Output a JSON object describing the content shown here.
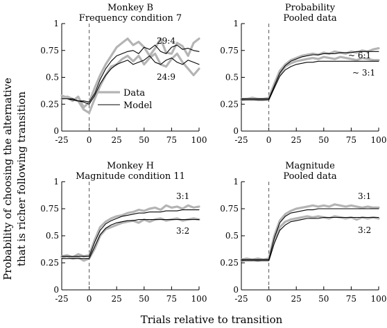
{
  "figure": {
    "ylabel_line1": "Probability of choosing the alternative",
    "ylabel_line2": "that is richer following transition",
    "xlabel": "Trials relative to transition"
  },
  "legend": {
    "data_label": "Data",
    "model_label": "Model"
  },
  "colors": {
    "data": "#b4b4b4",
    "model": "#000000",
    "dashed": "#555555"
  },
  "chart_data": [
    {
      "type": "line",
      "title": "Monkey B",
      "subtitle": "Frequency condition 7",
      "xlim": [
        -25,
        100
      ],
      "ylim": [
        0,
        1
      ],
      "xticks": [
        "-25",
        "0",
        "25",
        "50",
        "75",
        "100"
      ],
      "yticks": [
        "0",
        "0.25",
        "0.5",
        "0.75",
        "1"
      ],
      "annotations": [
        "29:4",
        "24:9"
      ],
      "legend": true,
      "x": [
        -25,
        -20,
        -15,
        -10,
        -5,
        0,
        5,
        10,
        15,
        20,
        25,
        30,
        35,
        40,
        45,
        50,
        55,
        60,
        65,
        70,
        75,
        80,
        85,
        90,
        95,
        100
      ],
      "series": [
        {
          "name": "Data",
          "kind": "data",
          "ratio": "29:4",
          "values": [
            0.33,
            0.31,
            0.28,
            0.32,
            0.22,
            0.27,
            0.4,
            0.52,
            0.62,
            0.7,
            0.78,
            0.82,
            0.86,
            0.8,
            0.83,
            0.78,
            0.7,
            0.77,
            0.86,
            0.73,
            0.72,
            0.82,
            0.79,
            0.7,
            0.82,
            0.86
          ]
        },
        {
          "name": "Model",
          "kind": "model",
          "ratio": "29:4",
          "values": [
            0.3,
            0.3,
            0.29,
            0.28,
            0.28,
            0.27,
            0.35,
            0.48,
            0.58,
            0.65,
            0.7,
            0.72,
            0.74,
            0.75,
            0.72,
            0.78,
            0.76,
            0.8,
            0.74,
            0.72,
            0.78,
            0.8,
            0.76,
            0.77,
            0.75,
            0.74
          ]
        },
        {
          "name": "Data",
          "kind": "data",
          "ratio": "24:9",
          "values": [
            0.3,
            0.32,
            0.3,
            0.28,
            0.2,
            0.17,
            0.3,
            0.42,
            0.52,
            0.6,
            0.62,
            0.67,
            0.7,
            0.65,
            0.7,
            0.62,
            0.68,
            0.72,
            0.62,
            0.6,
            0.67,
            0.72,
            0.64,
            0.58,
            0.52,
            0.58
          ]
        },
        {
          "name": "Model",
          "kind": "model",
          "ratio": "24:9",
          "values": [
            0.3,
            0.3,
            0.3,
            0.28,
            0.27,
            0.25,
            0.33,
            0.44,
            0.52,
            0.58,
            0.62,
            0.64,
            0.66,
            0.62,
            0.64,
            0.66,
            0.7,
            0.64,
            0.62,
            0.66,
            0.68,
            0.64,
            0.62,
            0.66,
            0.64,
            0.62
          ]
        }
      ]
    },
    {
      "type": "line",
      "title": "Probability",
      "subtitle": "Pooled data",
      "xlim": [
        -25,
        100
      ],
      "ylim": [
        0,
        1
      ],
      "xticks": [
        "-25",
        "0",
        "25",
        "50",
        "75",
        "100"
      ],
      "yticks": [
        "0",
        "0.25",
        "0.5",
        "0.75",
        "1"
      ],
      "annotations": [
        "~ 6:1",
        "~ 3:1"
      ],
      "legend": false,
      "x": [
        -25,
        -20,
        -15,
        -10,
        -5,
        0,
        5,
        10,
        15,
        20,
        25,
        30,
        35,
        40,
        45,
        50,
        55,
        60,
        65,
        70,
        75,
        80,
        85,
        90,
        95,
        100
      ],
      "series": [
        {
          "name": "Data",
          "kind": "data",
          "ratio": "~ 6:1",
          "values": [
            0.3,
            0.3,
            0.31,
            0.3,
            0.3,
            0.31,
            0.44,
            0.56,
            0.62,
            0.66,
            0.68,
            0.7,
            0.71,
            0.72,
            0.71,
            0.73,
            0.72,
            0.74,
            0.73,
            0.72,
            0.74,
            0.73,
            0.75,
            0.74,
            0.76,
            0.77
          ]
        },
        {
          "name": "Model",
          "kind": "model",
          "ratio": "~ 6:1",
          "values": [
            0.3,
            0.3,
            0.3,
            0.3,
            0.3,
            0.3,
            0.42,
            0.54,
            0.61,
            0.65,
            0.67,
            0.69,
            0.7,
            0.71,
            0.71,
            0.72,
            0.72,
            0.72,
            0.73,
            0.73,
            0.73,
            0.74,
            0.74,
            0.74,
            0.74,
            0.74
          ]
        },
        {
          "name": "Data",
          "kind": "data",
          "ratio": "~ 3:1",
          "values": [
            0.29,
            0.3,
            0.3,
            0.29,
            0.29,
            0.3,
            0.42,
            0.53,
            0.6,
            0.63,
            0.65,
            0.66,
            0.67,
            0.68,
            0.67,
            0.69,
            0.68,
            0.67,
            0.69,
            0.68,
            0.67,
            0.66,
            0.68,
            0.67,
            0.66,
            0.66
          ]
        },
        {
          "name": "Model",
          "kind": "model",
          "ratio": "~ 3:1",
          "values": [
            0.29,
            0.29,
            0.29,
            0.29,
            0.29,
            0.29,
            0.4,
            0.51,
            0.57,
            0.6,
            0.62,
            0.63,
            0.64,
            0.64,
            0.65,
            0.65,
            0.65,
            0.65,
            0.65,
            0.65,
            0.65,
            0.65,
            0.65,
            0.65,
            0.65,
            0.65
          ]
        }
      ]
    },
    {
      "type": "line",
      "title": "Monkey H",
      "subtitle": "Magnitude condition 11",
      "xlim": [
        -25,
        100
      ],
      "ylim": [
        0,
        1
      ],
      "xticks": [
        "-25",
        "0",
        "25",
        "50",
        "75",
        "100"
      ],
      "yticks": [
        "0",
        "0.25",
        "0.5",
        "0.75",
        "1"
      ],
      "annotations": [
        "3:1",
        "3:2"
      ],
      "legend": false,
      "x": [
        -25,
        -20,
        -15,
        -10,
        -5,
        0,
        5,
        10,
        15,
        20,
        25,
        30,
        35,
        40,
        45,
        50,
        55,
        60,
        65,
        70,
        75,
        80,
        85,
        90,
        95,
        100
      ],
      "series": [
        {
          "name": "Data",
          "kind": "data",
          "ratio": "3:1",
          "values": [
            0.31,
            0.32,
            0.3,
            0.33,
            0.31,
            0.32,
            0.46,
            0.58,
            0.63,
            0.66,
            0.68,
            0.69,
            0.71,
            0.72,
            0.74,
            0.73,
            0.75,
            0.76,
            0.74,
            0.78,
            0.76,
            0.77,
            0.75,
            0.78,
            0.76,
            0.77
          ]
        },
        {
          "name": "Model",
          "kind": "model",
          "ratio": "3:1",
          "values": [
            0.31,
            0.31,
            0.31,
            0.31,
            0.31,
            0.31,
            0.44,
            0.55,
            0.61,
            0.64,
            0.66,
            0.68,
            0.69,
            0.7,
            0.71,
            0.71,
            0.72,
            0.72,
            0.72,
            0.73,
            0.73,
            0.73,
            0.74,
            0.74,
            0.74,
            0.74
          ]
        },
        {
          "name": "Data",
          "kind": "data",
          "ratio": "3:2",
          "values": [
            0.3,
            0.31,
            0.29,
            0.3,
            0.27,
            0.29,
            0.38,
            0.5,
            0.56,
            0.58,
            0.6,
            0.62,
            0.63,
            0.64,
            0.62,
            0.65,
            0.63,
            0.65,
            0.66,
            0.64,
            0.65,
            0.66,
            0.64,
            0.65,
            0.66,
            0.65
          ]
        },
        {
          "name": "Model",
          "kind": "model",
          "ratio": "3:2",
          "values": [
            0.29,
            0.29,
            0.29,
            0.29,
            0.29,
            0.29,
            0.4,
            0.51,
            0.57,
            0.6,
            0.62,
            0.63,
            0.64,
            0.64,
            0.65,
            0.65,
            0.65,
            0.65,
            0.65,
            0.65,
            0.65,
            0.65,
            0.65,
            0.65,
            0.65,
            0.65
          ]
        }
      ]
    },
    {
      "type": "line",
      "title": "Magnitude",
      "subtitle": "Pooled data",
      "xlim": [
        -25,
        100
      ],
      "ylim": [
        0,
        1
      ],
      "xticks": [
        "-25",
        "0",
        "25",
        "50",
        "75",
        "100"
      ],
      "yticks": [
        "0",
        "0.25",
        "0.5",
        "0.75",
        "1"
      ],
      "annotations": [
        "3:1",
        "3:2"
      ],
      "legend": false,
      "x": [
        -25,
        -20,
        -15,
        -10,
        -5,
        0,
        5,
        10,
        15,
        20,
        25,
        30,
        35,
        40,
        45,
        50,
        55,
        60,
        65,
        70,
        75,
        80,
        85,
        90,
        95,
        100
      ],
      "series": [
        {
          "name": "Data",
          "kind": "data",
          "ratio": "3:1",
          "values": [
            0.28,
            0.29,
            0.28,
            0.29,
            0.28,
            0.29,
            0.5,
            0.64,
            0.7,
            0.73,
            0.75,
            0.76,
            0.77,
            0.78,
            0.77,
            0.78,
            0.77,
            0.79,
            0.78,
            0.77,
            0.78,
            0.77,
            0.76,
            0.77,
            0.76,
            0.76
          ]
        },
        {
          "name": "Model",
          "kind": "model",
          "ratio": "3:1",
          "values": [
            0.28,
            0.28,
            0.28,
            0.28,
            0.28,
            0.28,
            0.48,
            0.62,
            0.68,
            0.71,
            0.72,
            0.73,
            0.74,
            0.74,
            0.75,
            0.75,
            0.75,
            0.75,
            0.75,
            0.75,
            0.75,
            0.75,
            0.75,
            0.75,
            0.75,
            0.75
          ]
        },
        {
          "name": "Data",
          "kind": "data",
          "ratio": "3:2",
          "values": [
            0.27,
            0.28,
            0.28,
            0.27,
            0.28,
            0.28,
            0.46,
            0.58,
            0.63,
            0.65,
            0.66,
            0.67,
            0.68,
            0.67,
            0.68,
            0.67,
            0.66,
            0.68,
            0.67,
            0.66,
            0.67,
            0.65,
            0.67,
            0.66,
            0.67,
            0.66
          ]
        },
        {
          "name": "Model",
          "kind": "model",
          "ratio": "3:2",
          "values": [
            0.27,
            0.27,
            0.27,
            0.27,
            0.27,
            0.27,
            0.43,
            0.55,
            0.6,
            0.63,
            0.64,
            0.65,
            0.66,
            0.66,
            0.66,
            0.67,
            0.67,
            0.67,
            0.67,
            0.67,
            0.67,
            0.67,
            0.67,
            0.67,
            0.67,
            0.67
          ]
        }
      ]
    }
  ]
}
